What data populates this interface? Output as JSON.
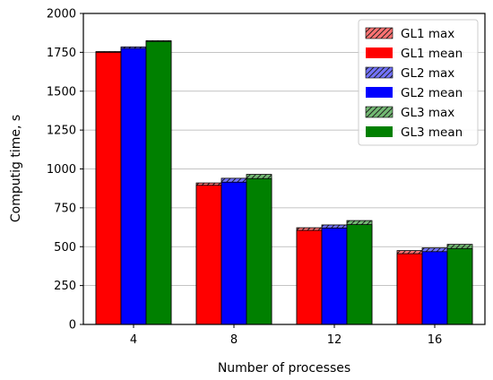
{
  "chart_data": {
    "type": "bar",
    "categories": [
      "4",
      "8",
      "12",
      "16"
    ],
    "xlabel": "Number of processes",
    "ylabel": "Computig time, s",
    "ylim": [
      0,
      2000
    ],
    "yticks": [
      0,
      250,
      500,
      750,
      1000,
      1250,
      1500,
      1750,
      2000
    ],
    "grid": "horizontal",
    "legend_position": "top-right",
    "series": [
      {
        "name": "GL1 max",
        "group": "GL1",
        "kind": "max",
        "values": [
          1755,
          910,
          622,
          475
        ],
        "color": "#ff0000"
      },
      {
        "name": "GL1 mean",
        "group": "GL1",
        "kind": "mean",
        "values": [
          1750,
          895,
          605,
          455
        ],
        "color": "#ff0000"
      },
      {
        "name": "GL2 max",
        "group": "GL2",
        "kind": "max",
        "values": [
          1785,
          940,
          640,
          492
        ],
        "color": "#0000ff"
      },
      {
        "name": "GL2 mean",
        "group": "GL2",
        "kind": "mean",
        "values": [
          1775,
          915,
          620,
          468
        ],
        "color": "#0000ff"
      },
      {
        "name": "GL3 max",
        "group": "GL3",
        "kind": "max",
        "values": [
          1825,
          965,
          668,
          515
        ],
        "color": "#008000"
      },
      {
        "name": "GL3 mean",
        "group": "GL3",
        "kind": "mean",
        "values": [
          1820,
          938,
          642,
          488
        ],
        "color": "#008000"
      }
    ]
  }
}
